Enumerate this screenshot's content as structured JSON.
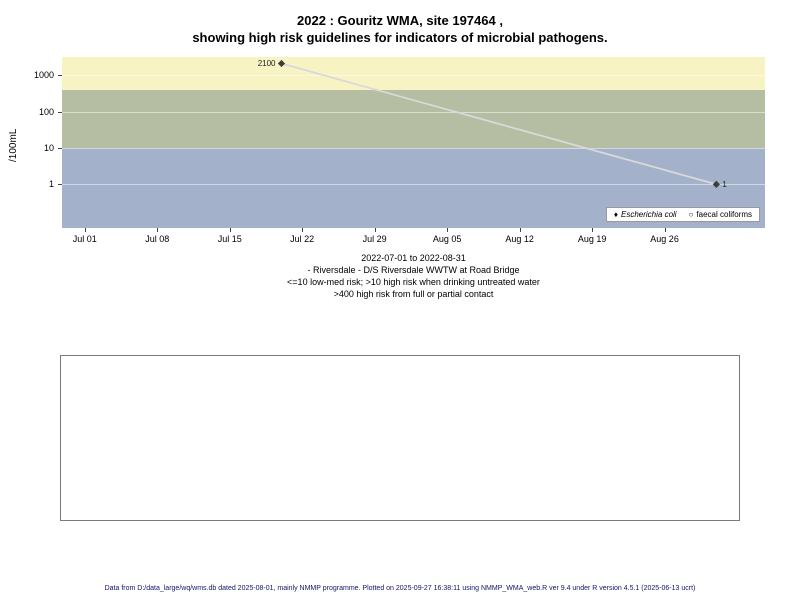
{
  "title": {
    "line1": "2022 : Gouritz WMA, site 197464 ,",
    "line2": "showing high risk guidelines for indicators of microbial pathogens."
  },
  "chart_data": {
    "type": "line",
    "title": "2022 : Gouritz WMA, site 197464 , showing high risk guidelines for indicators of microbial pathogens.",
    "xlabel": "",
    "ylabel": "/100mL",
    "y_scale": "log10",
    "y_ticks": [
      1,
      10,
      100,
      1000
    ],
    "y_domain_log": [
      -1.2,
      3.5
    ],
    "x_domain_days": [
      -2.2,
      65.7
    ],
    "date_range": "2022-07-01 to 2022-08-31",
    "x_ticks": [
      {
        "label": "Jul 01",
        "day": 0
      },
      {
        "label": "Jul 08",
        "day": 7
      },
      {
        "label": "Jul 15",
        "day": 14
      },
      {
        "label": "Jul 22",
        "day": 21
      },
      {
        "label": "Jul 29",
        "day": 28
      },
      {
        "label": "Aug 05",
        "day": 35
      },
      {
        "label": "Aug 12",
        "day": 42
      },
      {
        "label": "Aug 19",
        "day": 49
      },
      {
        "label": "Aug 26",
        "day": 56
      }
    ],
    "bands": [
      {
        "name": "high-risk-full-or-partial-contact",
        "threshold": ">400",
        "from_log": 2.60206,
        "to_log": 3.5,
        "color": "#f8f3c2"
      },
      {
        "name": "high-risk-drinking-untreated",
        "threshold": ">10",
        "from_log": 1,
        "to_log": 2.60206,
        "color": "#b5bda2"
      },
      {
        "name": "low-med-risk",
        "threshold": "<=10",
        "from_log": -1.2,
        "to_log": 1,
        "color": "#a3b1cb"
      }
    ],
    "series": [
      {
        "name": "Escherichia coli",
        "symbol": "filled-diamond",
        "points": [
          {
            "date": "2022-07-20",
            "day": 19,
            "value": 2100,
            "label": "2100",
            "label_side": "left"
          },
          {
            "date": "2022-08-31",
            "day": 61,
            "value": 1,
            "label": "1",
            "label_side": "right"
          }
        ]
      },
      {
        "name": "faecal coliforms",
        "symbol": "open-circle",
        "points": []
      }
    ],
    "line_color": "#d9d9d9",
    "point_color": "#3c3c3c",
    "legend_position": "bottom-right"
  },
  "legend": {
    "items": [
      {
        "symbol": "♦",
        "symbol_name": "filled-diamond-icon",
        "label": "Escherichia coli",
        "italic": true
      },
      {
        "symbol": "○",
        "symbol_name": "open-circle-icon",
        "label": "faecal coliforms",
        "italic": false
      }
    ]
  },
  "caption": {
    "line1": "2022-07-01 to 2022-08-31",
    "line2": "- Riversdale - D/S Riversdale WWTW at Road Bridge",
    "line3": "<=10 low-med risk; >10 high risk when drinking untreated water",
    "line4": ">400 high risk from full or partial contact"
  },
  "footer": "Data from D:/data_large/wq/wms.db dated 2025-08-01, mainly NMMP programme. Plotted on 2025-09-27 16:38:11 using NMMP_WMA_web.R ver 9.4 under R version 4.5.1 (2025-06-13 ucrt)"
}
